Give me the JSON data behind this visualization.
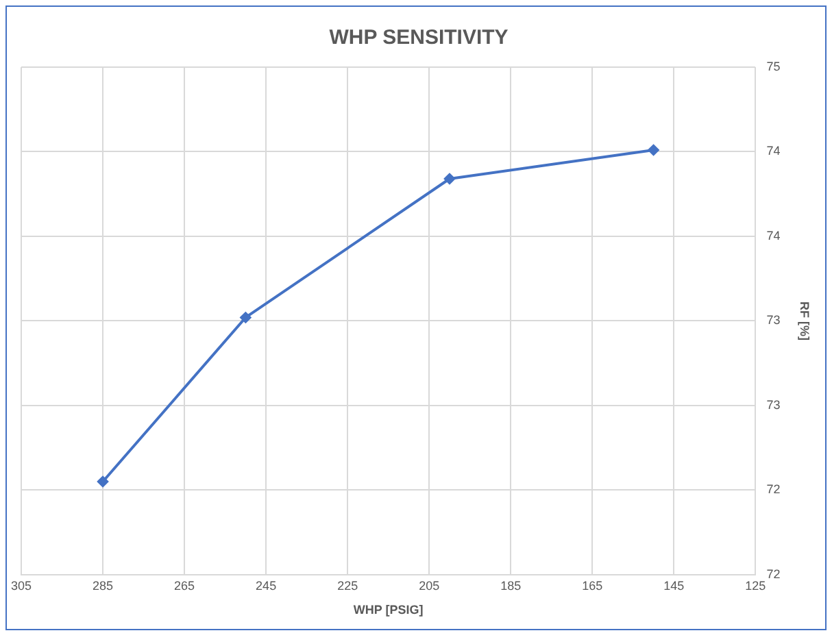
{
  "chart_data": {
    "type": "line",
    "title": "WHP SENSITIVITY",
    "xlabel": "WHP [PSIG]",
    "ylabel": "RF [%]",
    "x": [
      285,
      250,
      200,
      150
    ],
    "series": [
      {
        "color": "#4472c4",
        "values": [
          72.05,
          73.02,
          73.84,
          74.01
        ]
      }
    ],
    "xlim": [
      305,
      125
    ],
    "xticks": [
      305,
      285,
      265,
      245,
      225,
      205,
      185,
      165,
      145,
      125
    ],
    "ylim": [
      71.5,
      74.5
    ],
    "yticks": [
      {
        "value": 71.5,
        "label": "72"
      },
      {
        "value": 72,
        "label": "72"
      },
      {
        "value": 72.5,
        "label": "73"
      },
      {
        "value": 73,
        "label": "73"
      },
      {
        "value": 73.5,
        "label": "74"
      },
      {
        "value": 74,
        "label": "74"
      },
      {
        "value": 74.5,
        "label": "75"
      }
    ],
    "grid": true,
    "legend": false,
    "marker": "diamond",
    "line_style": "solid"
  }
}
